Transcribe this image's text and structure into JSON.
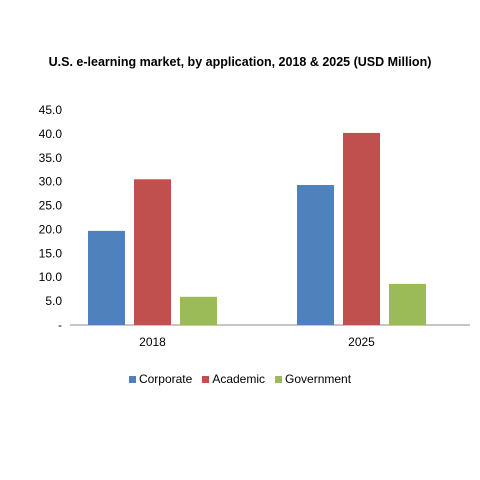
{
  "chart_data": {
    "type": "bar",
    "title": "U.S. e-learning market, by application, 2018 & 2025 (USD Million)",
    "categories": [
      "2018",
      "2025"
    ],
    "series": [
      {
        "name": "Corporate",
        "values": [
          19.7,
          29.3
        ],
        "color": "#4f81bd"
      },
      {
        "name": "Academic",
        "values": [
          30.5,
          40.2
        ],
        "color": "#c0504d"
      },
      {
        "name": "Government",
        "values": [
          5.9,
          8.6
        ],
        "color": "#9bbb59"
      }
    ],
    "yticks": [
      "-",
      "5.0",
      "10.0",
      "15.0",
      "20.0",
      "25.0",
      "30.0",
      "35.0",
      "40.0",
      "45.0"
    ],
    "ylim": [
      0,
      45
    ],
    "grid": false,
    "legend_position": "bottom"
  }
}
